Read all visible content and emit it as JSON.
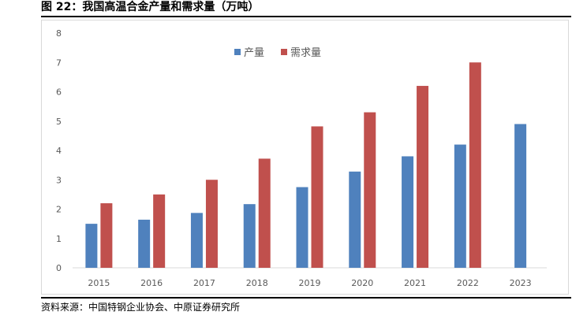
{
  "figure": {
    "title": "图 22：我国高温合金产量和需求量（万吨）",
    "source": "资料来源：中国特钢企业协会、中原证券研究所"
  },
  "chart_data": {
    "type": "bar",
    "categories": [
      "2015",
      "2016",
      "2017",
      "2018",
      "2019",
      "2020",
      "2021",
      "2022",
      "2023"
    ],
    "series": [
      {
        "name": "产量",
        "color": "#4f81bd",
        "values": [
          1.5,
          1.64,
          1.87,
          2.17,
          2.75,
          3.28,
          3.8,
          4.2,
          4.9
        ]
      },
      {
        "name": "需求量",
        "color": "#c0504d",
        "values": [
          2.2,
          2.5,
          3.0,
          3.72,
          4.82,
          5.3,
          6.2,
          7.0,
          null
        ]
      }
    ],
    "ylim": [
      0,
      8
    ],
    "yticks": [
      "0",
      "1",
      "2",
      "3",
      "4",
      "5",
      "6",
      "7",
      "8"
    ],
    "legend_position": "top-center",
    "grid": false,
    "xlabel": "",
    "ylabel": ""
  }
}
